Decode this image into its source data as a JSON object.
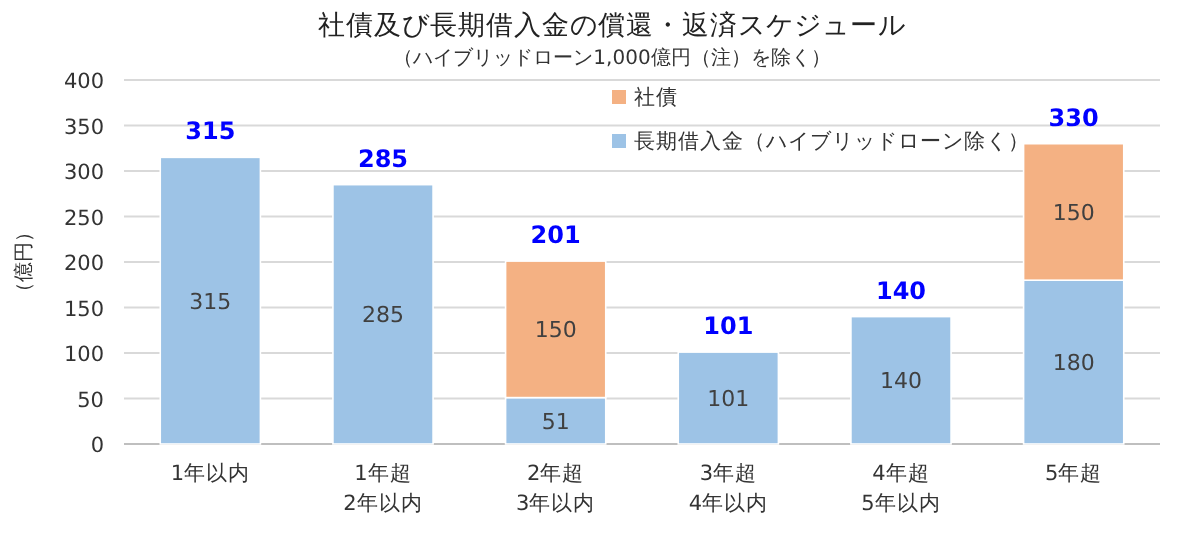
{
  "chart_data": {
    "type": "bar",
    "stacked": true,
    "title": "社債及び長期借入金の償還・返済スケジュール",
    "subtitle": "（ハイブリッドローン1,000億円（注）を除く）",
    "ylabel": "（億円）",
    "categories": [
      "1年以内",
      "1年超\n2年以内",
      "2年超\n3年以内",
      "3年超\n4年以内",
      "4年超\n5年以内",
      "5年超"
    ],
    "series": [
      {
        "name": "長期借入金（ハイブリッドローン除く）",
        "color": "#9dc3e6",
        "values": [
          315,
          285,
          51,
          101,
          140,
          180
        ]
      },
      {
        "name": "社債",
        "color": "#f4b183",
        "values": [
          null,
          null,
          150,
          null,
          null,
          150
        ]
      }
    ],
    "totals": [
      "315",
      "285",
      "201",
      "101",
      "140",
      "330"
    ],
    "data_labels": true,
    "ylim": [
      0,
      400
    ],
    "yticks": [
      0,
      50,
      100,
      150,
      200,
      250,
      300,
      350,
      400
    ],
    "grid": "y",
    "legend": "top"
  }
}
